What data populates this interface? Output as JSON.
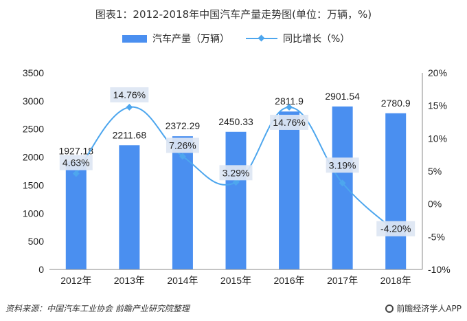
{
  "chart_data": {
    "type": "bar",
    "title": "图表1：2012-2018年中国汽车产量走势图(单位：万辆，%)",
    "categories": [
      "2012年",
      "2013年",
      "2014年",
      "2015年",
      "2016年",
      "2017年",
      "2018年"
    ],
    "series": [
      {
        "name": "汽车产量（万辆）",
        "type": "bar",
        "axis": "left",
        "values": [
          1927.18,
          2211.68,
          2372.29,
          2450.33,
          2811.9,
          2901.54,
          2780.9
        ],
        "labels": [
          "1927.18",
          "2211.68",
          "2372.29",
          "2450.33",
          "2811.9",
          "2901.54",
          "2780.9"
        ]
      },
      {
        "name": "同比增长（%）",
        "type": "line",
        "axis": "right",
        "values": [
          4.63,
          14.76,
          7.26,
          3.29,
          14.76,
          3.19,
          -4.2
        ],
        "labels": [
          "4.63%",
          "14.76%",
          "7.26%",
          "3.29%",
          "14.76%",
          "3.19%",
          "-4.20%"
        ]
      }
    ],
    "ylim_left": [
      0,
      3500
    ],
    "yticks_left": [
      "0",
      "500",
      "1000",
      "1500",
      "2000",
      "2500",
      "3000",
      "3500"
    ],
    "ylim_right": [
      -10,
      20
    ],
    "yticks_right": [
      "-10%",
      "-5%",
      "0%",
      "5%",
      "10%",
      "15%",
      "20%"
    ],
    "legend_position": "top",
    "grid": false,
    "colors": {
      "bar": "#4a8ff0",
      "line": "#4da6ee"
    }
  },
  "footer": {
    "source": "资料来源：中国汽车工业协会 前瞻产业研究院整理",
    "brand": "前瞻经济学人APP"
  }
}
